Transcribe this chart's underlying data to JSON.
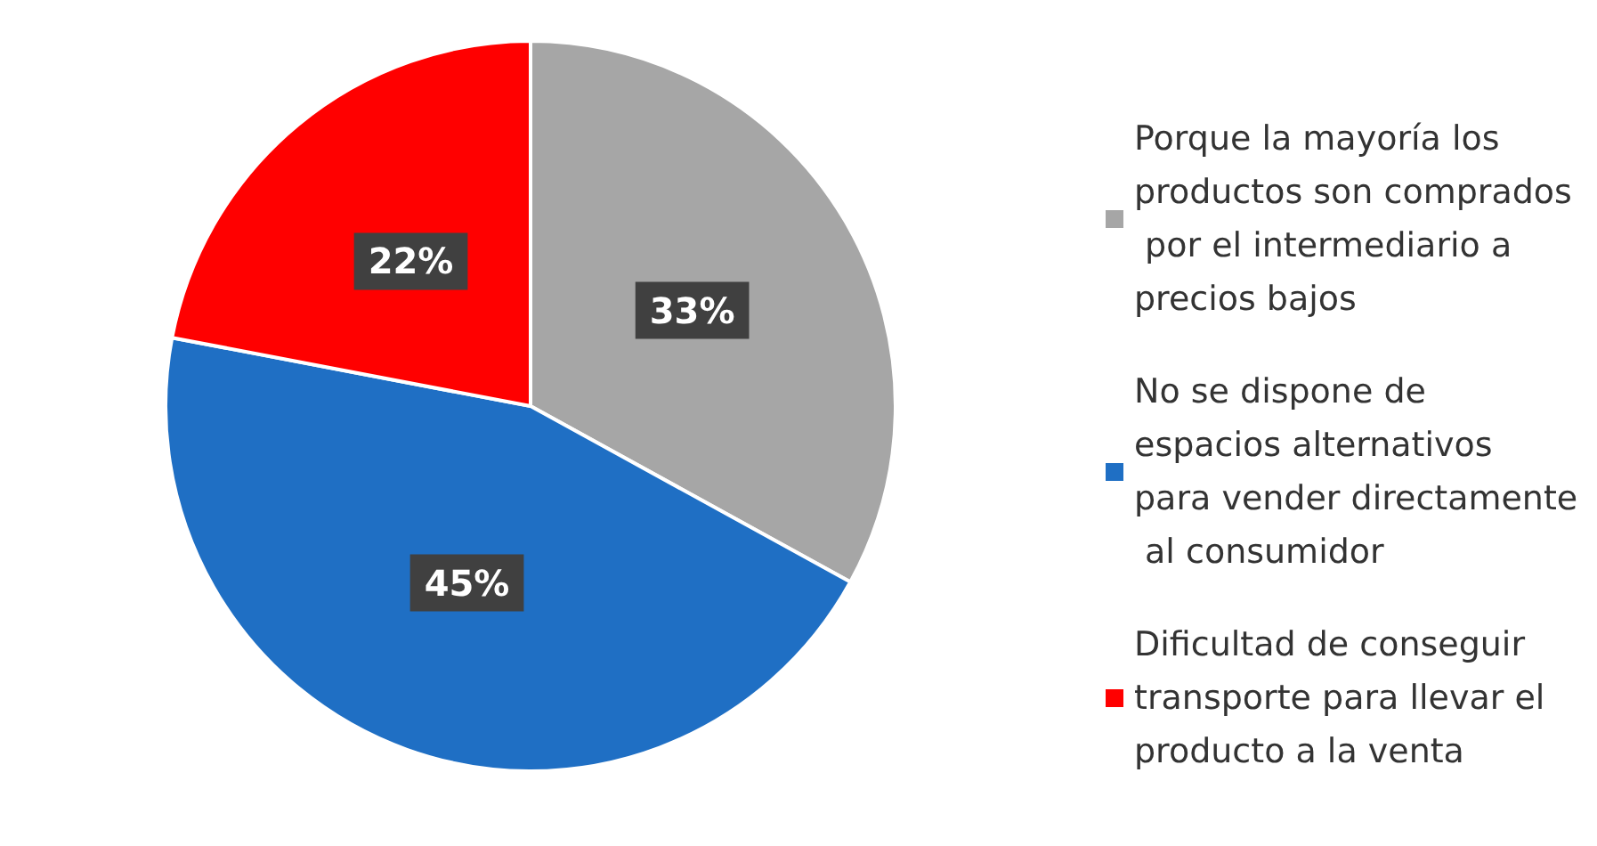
{
  "chart_data": {
    "type": "pie",
    "categories": [
      "Porque la mayoría los productos son comprados por el intermediario a precios bajos",
      "No se dispone de espacios alternativos para vender directamente al consumidor",
      "Dificultad de conseguir transporte para llevar el producto a la venta"
    ],
    "values": [
      33,
      45,
      22
    ],
    "value_labels": [
      "33%",
      "45%",
      "22%"
    ],
    "colors": [
      "#a6a6a6",
      "#1f6fc4",
      "#ff0000"
    ],
    "legend": "right"
  }
}
